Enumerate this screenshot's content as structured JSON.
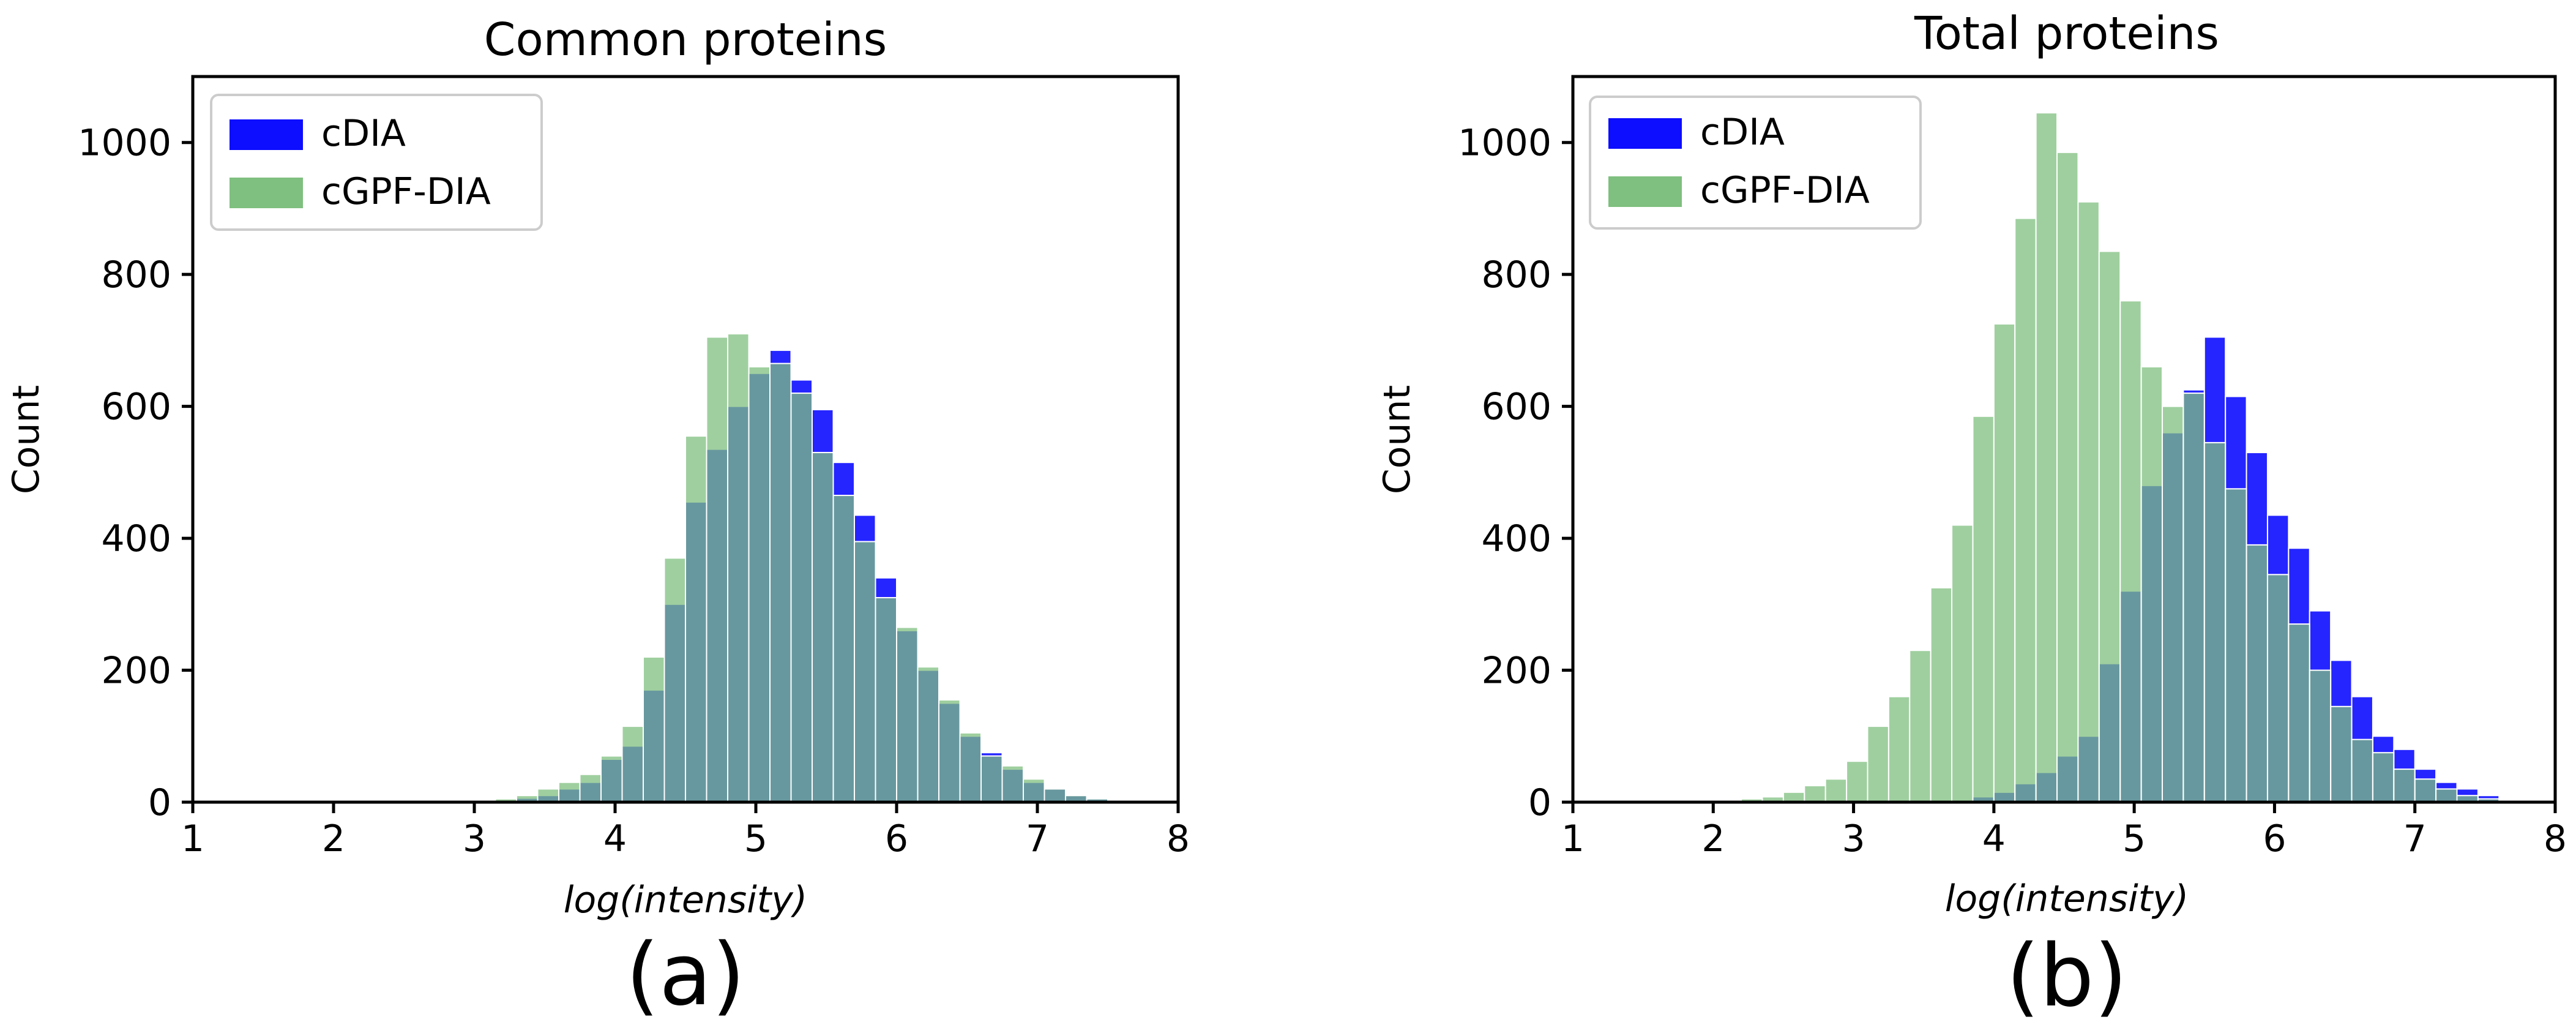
{
  "chart_data": [
    {
      "type": "bar",
      "title": "Common proteins",
      "xlabel": "log(intensity)",
      "ylabel": "Count",
      "panel_label": "(a)",
      "xlim": [
        1,
        8
      ],
      "ylim": [
        0,
        1100
      ],
      "xticks": [
        1,
        2,
        3,
        4,
        5,
        6,
        7,
        8
      ],
      "yticks": [
        0,
        200,
        400,
        600,
        800,
        1000
      ],
      "legend_position": "top-left",
      "bin_start": 3.0,
      "bin_width": 0.15,
      "series": [
        {
          "name": "cDIA",
          "color": "#0d0dff",
          "values": [
            1,
            3,
            6,
            10,
            20,
            30,
            65,
            85,
            170,
            300,
            455,
            535,
            600,
            650,
            685,
            640,
            595,
            515,
            435,
            340,
            260,
            200,
            150,
            100,
            75,
            50,
            30,
            20,
            10,
            5,
            2,
            1
          ]
        },
        {
          "name": "cGPF-DIA",
          "color": "#7fbf7f",
          "values": [
            2,
            5,
            10,
            20,
            30,
            42,
            70,
            115,
            220,
            370,
            555,
            705,
            710,
            660,
            665,
            620,
            530,
            465,
            395,
            310,
            265,
            205,
            155,
            105,
            70,
            55,
            35,
            20,
            10,
            5,
            3,
            2
          ]
        }
      ]
    },
    {
      "type": "bar",
      "title": "Total proteins",
      "xlabel": "log(intensity)",
      "ylabel": "Count",
      "panel_label": "(b)",
      "xlim": [
        1,
        8
      ],
      "ylim": [
        0,
        1100
      ],
      "xticks": [
        1,
        2,
        3,
        4,
        5,
        6,
        7,
        8
      ],
      "yticks": [
        0,
        200,
        400,
        600,
        800,
        1000
      ],
      "legend_position": "top-left",
      "bin_start": 2.2,
      "bin_width": 0.15,
      "series": [
        {
          "name": "cDIA",
          "color": "#0d0dff",
          "values": [
            0,
            0,
            0,
            0,
            0,
            0,
            0,
            0,
            0,
            1,
            3,
            8,
            15,
            28,
            45,
            70,
            100,
            210,
            320,
            480,
            560,
            625,
            705,
            615,
            530,
            435,
            385,
            290,
            215,
            160,
            100,
            80,
            50,
            30,
            20,
            10,
            2
          ]
        },
        {
          "name": "cGPF-DIA",
          "color": "#7fbf7f",
          "values": [
            5,
            8,
            15,
            25,
            35,
            62,
            115,
            160,
            230,
            325,
            420,
            585,
            725,
            885,
            1045,
            985,
            910,
            835,
            760,
            660,
            600,
            620,
            545,
            475,
            390,
            345,
            270,
            200,
            145,
            95,
            75,
            50,
            35,
            20,
            10,
            5,
            2
          ]
        }
      ]
    }
  ]
}
